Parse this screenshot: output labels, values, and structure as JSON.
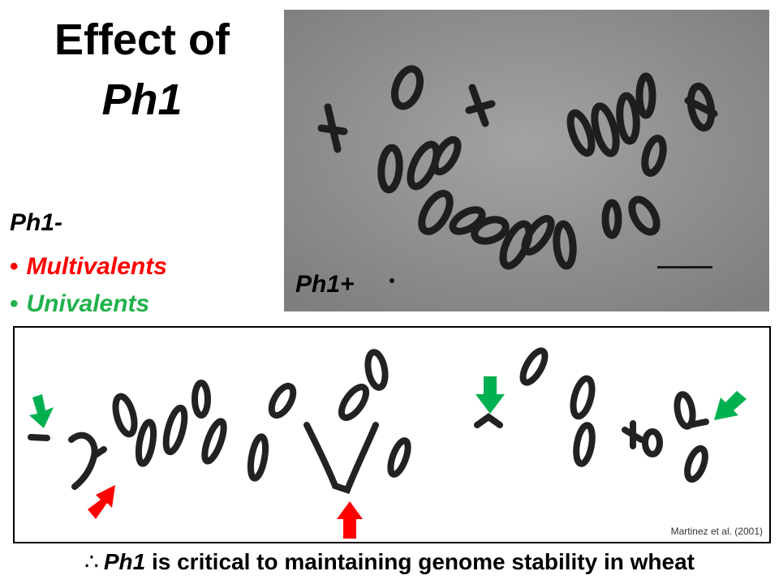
{
  "title": {
    "line1": "Effect of",
    "line2": "Ph1"
  },
  "ph1_minus": {
    "label": "Ph1-",
    "bullets": [
      {
        "text": "Multivalents",
        "color": "#ff0000"
      },
      {
        "text": "Univalents",
        "color": "#22b14c"
      }
    ]
  },
  "top_photo": {
    "label": "Ph1+"
  },
  "bottom_photo": {
    "citation": "Martinez et al. (2001)",
    "arrow_colors": {
      "multivalent": "#ff0000",
      "univalent": "#00b050"
    }
  },
  "conclusion": {
    "symbol": "∴",
    "term": "Ph1",
    "rest": " is critical to maintaining genome stability in wheat"
  }
}
